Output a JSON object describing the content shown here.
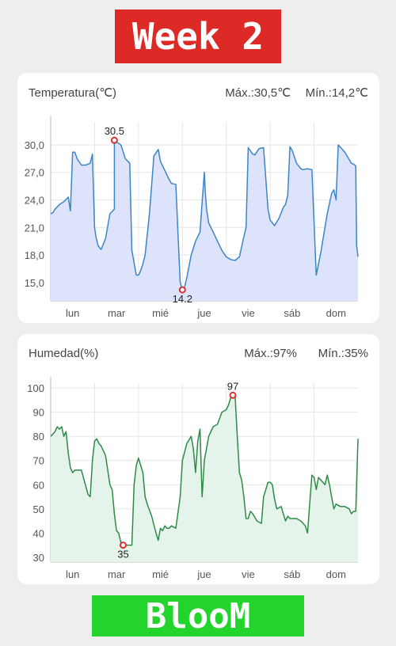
{
  "banner_top": "Week 2",
  "banner_bottom": "BlooM",
  "temperature": {
    "title": "Temperatura(℃)",
    "max_text": "Máx.:30,5℃",
    "min_text": "Mín.:14,2℃",
    "max_label": "30.5",
    "min_label": "14.2",
    "color": "#3b86c6",
    "fill": "#dde3fb"
  },
  "humidity": {
    "title": "Humedad(%)",
    "max_text": "Máx.:97%",
    "min_text": "Mín.:35%",
    "max_label": "97",
    "min_label": "35",
    "color": "#2e8b47",
    "fill": "#e4f4ea"
  },
  "chart_data": [
    {
      "type": "area",
      "title": "Temperatura(℃)",
      "x_range": [
        0,
        7
      ],
      "categories": [
        "lun",
        "mar",
        "mié",
        "jue",
        "vie",
        "sáb",
        "dom"
      ],
      "ylim": [
        13,
        32.5
      ],
      "yticks": [
        "15,0",
        "18,0",
        "21,0",
        "24,0",
        "27,0",
        "30,0"
      ],
      "ytick_values": [
        15,
        18,
        21,
        24,
        27,
        30
      ],
      "grid": true,
      "highlight_max": {
        "x": 1.45,
        "y": 30.5
      },
      "highlight_min": {
        "x": 3.0,
        "y": 14.2
      },
      "series": [
        {
          "x": [
            0,
            0.05,
            0.1,
            0.2,
            0.3,
            0.4,
            0.45,
            0.5,
            0.55,
            0.6,
            0.7,
            0.8,
            0.9,
            0.95,
            1.0,
            1.03,
            1.08,
            1.15,
            1.25,
            1.35,
            1.45,
            1.45,
            1.5,
            1.6,
            1.7,
            1.8,
            1.85,
            1.95,
            2.0,
            2.05,
            2.1,
            2.15,
            2.25,
            2.35,
            2.45,
            2.5,
            2.6,
            2.7,
            2.75,
            2.85,
            2.95,
            3.0,
            3.05,
            3.1,
            3.2,
            3.3,
            3.4,
            3.5,
            3.52,
            3.55,
            3.6,
            3.7,
            3.8,
            3.9,
            4.0,
            4.1,
            4.2,
            4.3,
            4.4,
            4.45,
            4.5,
            4.6,
            4.65,
            4.75,
            4.85,
            4.95,
            5.0,
            5.1,
            5.2,
            5.3,
            5.35,
            5.4,
            5.45,
            5.5,
            5.6,
            5.7,
            5.75,
            5.85,
            5.95,
            6.05,
            6.15,
            6.3,
            6.4,
            6.45,
            6.5,
            6.55,
            6.7,
            6.85,
            6.9,
            6.95,
            6.97,
            7.0
          ],
          "y": [
            22.5,
            22.6,
            23.0,
            23.5,
            23.8,
            24.3,
            22.8,
            29.2,
            29.2,
            28.5,
            27.8,
            27.8,
            28.0,
            29.0,
            21.0,
            20.0,
            19.0,
            18.6,
            19.8,
            22.5,
            23.0,
            30.5,
            30.3,
            30.0,
            28.5,
            28.0,
            18.5,
            15.8,
            15.8,
            16.3,
            17.0,
            18.0,
            22.5,
            28.8,
            29.5,
            28.2,
            27.2,
            26.2,
            25.8,
            25.7,
            15.0,
            14.2,
            14.5,
            15.5,
            18.0,
            19.5,
            20.5,
            27.0,
            25.0,
            23.0,
            21.5,
            20.5,
            19.5,
            18.5,
            17.8,
            17.5,
            17.4,
            17.8,
            20.0,
            21.0,
            29.7,
            29.0,
            28.9,
            29.6,
            29.7,
            23.0,
            21.8,
            21.2,
            22.0,
            23.2,
            23.5,
            24.5,
            29.8,
            29.4,
            28.0,
            27.4,
            27.3,
            27.4,
            27.3,
            15.8,
            18.2,
            22.5,
            24.7,
            25.1,
            24.0,
            30.0,
            29.2,
            28.0,
            27.9,
            27.7,
            19.0,
            17.8
          ]
        }
      ]
    },
    {
      "type": "area",
      "title": "Humedad(%)",
      "x_range": [
        0,
        7
      ],
      "categories": [
        "lun",
        "mar",
        "mié",
        "jue",
        "vie",
        "sáb",
        "dom"
      ],
      "ylim": [
        28,
        102
      ],
      "yticks": [
        "30",
        "40",
        "50",
        "60",
        "70",
        "80",
        "90",
        "100"
      ],
      "ytick_values": [
        30,
        40,
        50,
        60,
        70,
        80,
        90,
        100
      ],
      "grid": true,
      "highlight_max": {
        "x": 4.15,
        "y": 97
      },
      "highlight_min": {
        "x": 1.65,
        "y": 35
      },
      "series": [
        {
          "x": [
            0,
            0.1,
            0.15,
            0.2,
            0.25,
            0.3,
            0.35,
            0.4,
            0.45,
            0.5,
            0.55,
            0.6,
            0.7,
            0.85,
            0.9,
            0.95,
            1.0,
            1.05,
            1.1,
            1.15,
            1.25,
            1.35,
            1.4,
            1.45,
            1.5,
            1.55,
            1.6,
            1.65,
            1.7,
            1.75,
            1.85,
            1.9,
            1.95,
            2.0,
            2.1,
            2.15,
            2.2,
            2.3,
            2.4,
            2.45,
            2.5,
            2.55,
            2.6,
            2.65,
            2.7,
            2.75,
            2.85,
            2.95,
            3.0,
            3.1,
            3.2,
            3.25,
            3.3,
            3.35,
            3.4,
            3.45,
            3.5,
            3.6,
            3.7,
            3.8,
            3.9,
            4.0,
            4.05,
            4.1,
            4.15,
            4.2,
            4.25,
            4.3,
            4.35,
            4.4,
            4.45,
            4.5,
            4.55,
            4.6,
            4.7,
            4.8,
            4.85,
            4.9,
            4.95,
            5.0,
            5.05,
            5.1,
            5.15,
            5.25,
            5.35,
            5.4,
            5.45,
            5.5,
            5.6,
            5.7,
            5.8,
            5.85,
            5.9,
            5.95,
            6.0,
            6.05,
            6.1,
            6.2,
            6.25,
            6.3,
            6.35,
            6.4,
            6.45,
            6.5,
            6.6,
            6.7,
            6.8,
            6.85,
            6.9,
            6.95,
            7.0
          ],
          "y": [
            80,
            82,
            84,
            83,
            84,
            80,
            82,
            73,
            67,
            65,
            66,
            66,
            66,
            56,
            55,
            70,
            78,
            79,
            77,
            76,
            72,
            60,
            58,
            48,
            41,
            40,
            36,
            35,
            35,
            35,
            35,
            60,
            68,
            71,
            65,
            55,
            52,
            47,
            40,
            37,
            42,
            41,
            43,
            42,
            42,
            43,
            42,
            55,
            70,
            77,
            80,
            75,
            65,
            78,
            83,
            55,
            70,
            80,
            84,
            85,
            90,
            91,
            93,
            96,
            97,
            97,
            80,
            65,
            62,
            55,
            46,
            46,
            49,
            48,
            45,
            44,
            55,
            58,
            61,
            61,
            60,
            54,
            50,
            51,
            45,
            47,
            46,
            46,
            46,
            45,
            43,
            40,
            52,
            64,
            63,
            58,
            63,
            61,
            60,
            64,
            60,
            55,
            50,
            52,
            51,
            51,
            50,
            48,
            49,
            49,
            79
          ]
        }
      ]
    }
  ]
}
